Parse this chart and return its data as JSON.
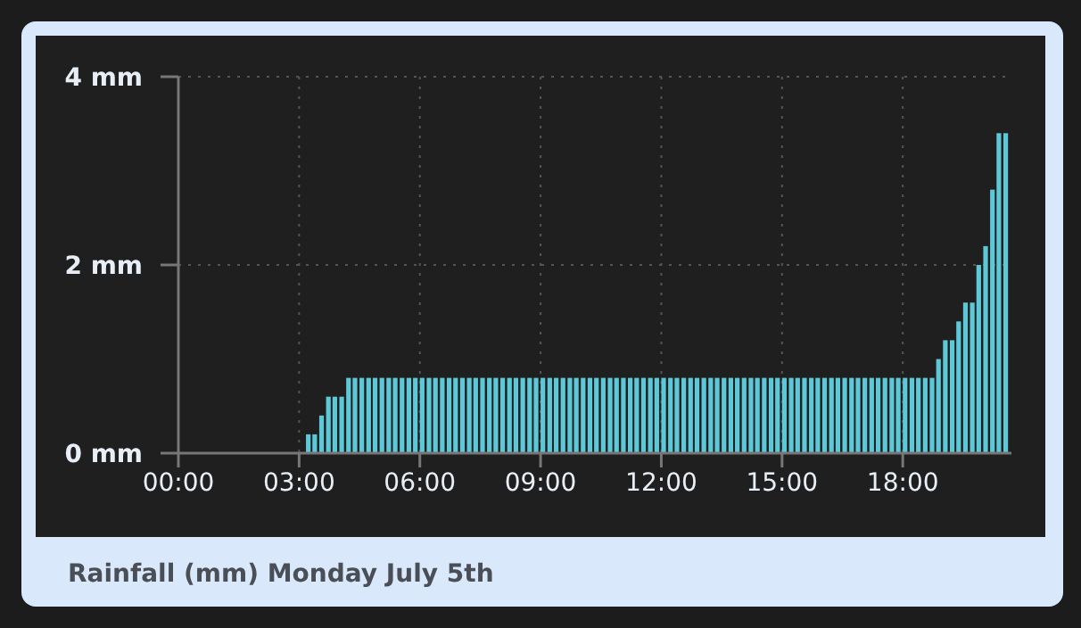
{
  "chart_data": {
    "type": "bar",
    "title": "Rainfall (mm) Monday July 5th",
    "x": [
      3.17,
      3.33,
      3.5,
      3.67,
      3.83,
      4,
      4.17,
      4.33,
      4.5,
      4.67,
      4.83,
      5,
      5.17,
      5.33,
      5.5,
      5.67,
      5.83,
      6,
      6.17,
      6.33,
      6.5,
      6.67,
      6.83,
      7,
      7.17,
      7.33,
      7.5,
      7.67,
      7.83,
      8,
      8.17,
      8.33,
      8.5,
      8.67,
      8.83,
      9,
      9.17,
      9.33,
      9.5,
      9.67,
      9.83,
      10,
      10.17,
      10.33,
      10.5,
      10.67,
      10.83,
      11,
      11.17,
      11.33,
      11.5,
      11.67,
      11.83,
      12,
      12.17,
      12.33,
      12.5,
      12.67,
      12.83,
      13,
      13.17,
      13.33,
      13.5,
      13.67,
      13.83,
      14,
      14.17,
      14.33,
      14.5,
      14.67,
      14.83,
      15,
      15.17,
      15.33,
      15.5,
      15.67,
      15.83,
      16,
      16.17,
      16.33,
      16.5,
      16.67,
      16.83,
      17,
      17.17,
      17.33,
      17.5,
      17.67,
      17.83,
      18,
      18.17,
      18.33,
      18.5,
      18.67,
      18.83,
      19,
      19.17,
      19.33,
      19.5,
      19.67,
      19.83,
      20,
      20.17,
      20.33,
      20.5
    ],
    "values": [
      0.2,
      0.2,
      0.4,
      0.6,
      0.6,
      0.6,
      0.8,
      0.8,
      0.8,
      0.8,
      0.8,
      0.8,
      0.8,
      0.8,
      0.8,
      0.8,
      0.8,
      0.8,
      0.8,
      0.8,
      0.8,
      0.8,
      0.8,
      0.8,
      0.8,
      0.8,
      0.8,
      0.8,
      0.8,
      0.8,
      0.8,
      0.8,
      0.8,
      0.8,
      0.8,
      0.8,
      0.8,
      0.8,
      0.8,
      0.8,
      0.8,
      0.8,
      0.8,
      0.8,
      0.8,
      0.8,
      0.8,
      0.8,
      0.8,
      0.8,
      0.8,
      0.8,
      0.8,
      0.8,
      0.8,
      0.8,
      0.8,
      0.8,
      0.8,
      0.8,
      0.8,
      0.8,
      0.8,
      0.8,
      0.8,
      0.8,
      0.8,
      0.8,
      0.8,
      0.8,
      0.8,
      0.8,
      0.8,
      0.8,
      0.8,
      0.8,
      0.8,
      0.8,
      0.8,
      0.8,
      0.8,
      0.8,
      0.8,
      0.8,
      0.8,
      0.8,
      0.8,
      0.8,
      0.8,
      0.8,
      0.8,
      0.8,
      0.8,
      0.8,
      1.0,
      1.2,
      1.2,
      1.4,
      1.6,
      1.6,
      2.0,
      2.2,
      2.8,
      3.4,
      3.4
    ],
    "color": "#5cc8d8",
    "xlim": [
      0,
      20.7
    ],
    "xticks": [
      {
        "value": 0,
        "label": "00:00"
      },
      {
        "value": 3,
        "label": "03:00"
      },
      {
        "value": 6,
        "label": "06:00"
      },
      {
        "value": 9,
        "label": "09:00"
      },
      {
        "value": 12,
        "label": "12:00"
      },
      {
        "value": 15,
        "label": "15:00"
      },
      {
        "value": 18,
        "label": "18:00"
      }
    ],
    "ylim": [
      0,
      4
    ],
    "yticks": [
      {
        "value": 0,
        "label": "0 mm"
      },
      {
        "value": 2,
        "label": "2 mm"
      },
      {
        "value": 4,
        "label": "4 mm"
      }
    ],
    "grid": true
  }
}
